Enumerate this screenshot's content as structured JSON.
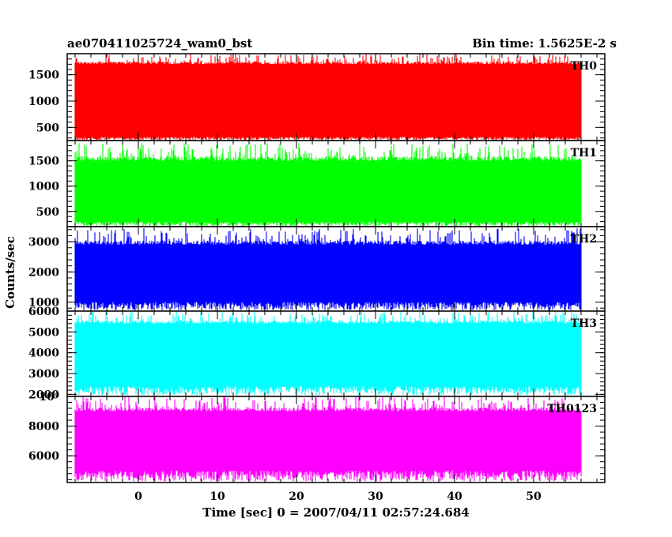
{
  "header": {
    "title": "ae070411025724_wam0_bst",
    "bin_time": "Bin time: 1.5625E-2 s"
  },
  "axes": {
    "xlabel": "Time [sec] 0 = 2007/04/11 02:57:24.684",
    "ylabel": "Counts/sec"
  },
  "chart_data": {
    "type": "line",
    "title": "ae070411025724_wam0_bst",
    "subtitle": "Bin time: 1.5625E-2 s",
    "xlabel": "Time [sec] 0 = 2007/04/11 02:57:24.684",
    "ylabel": "Counts/sec",
    "xlim": [
      -9,
      59
    ],
    "x_data_range": [
      -8,
      56
    ],
    "bin_time_s": 0.015625,
    "x_ticks": [
      0,
      10,
      20,
      30,
      40,
      50
    ],
    "grid": false,
    "panels": [
      {
        "name": "TH0",
        "color": "#ff0000",
        "ylim": [
          250,
          1900
        ],
        "y_ticks": [
          500,
          1000,
          1500
        ],
        "y_tick_labels": [
          "500",
          "1000",
          "1500"
        ],
        "band": [
          320,
          1700
        ],
        "mean": 1000,
        "peak": 1900
      },
      {
        "name": "TH1",
        "color": "#00ff00",
        "ylim": [
          200,
          1900
        ],
        "y_ticks": [
          500,
          1000,
          1500
        ],
        "y_tick_labels": [
          "500",
          "1000",
          "1500"
        ],
        "band": [
          300,
          1500
        ],
        "mean": 800,
        "peak": 1850
      },
      {
        "name": "TH2",
        "color": "#0000ff",
        "ylim": [
          700,
          3500
        ],
        "y_ticks": [
          1000,
          2000,
          3000
        ],
        "y_tick_labels": [
          "1000",
          "2000",
          "3000"
        ],
        "band": [
          1000,
          2900
        ],
        "mean": 1800,
        "peak": 3450
      },
      {
        "name": "TH3",
        "color": "#00ffff",
        "ylim": [
          1900,
          6000
        ],
        "y_ticks": [
          2000,
          3000,
          4000,
          5000,
          6000
        ],
        "y_tick_labels": [
          "2000",
          "3000",
          "4000",
          "5000",
          "6000"
        ],
        "band": [
          2400,
          5400
        ],
        "mean": 3800,
        "peak": 6000
      },
      {
        "name": "TH0123",
        "color": "#ff00ff",
        "ylim": [
          4200,
          10000
        ],
        "y_ticks": [
          6000,
          8000,
          10000
        ],
        "y_tick_labels": [
          "6000",
          "8000",
          "10⁴"
        ],
        "band": [
          5000,
          9000
        ],
        "mean": 7000,
        "peak": 10000
      }
    ]
  }
}
